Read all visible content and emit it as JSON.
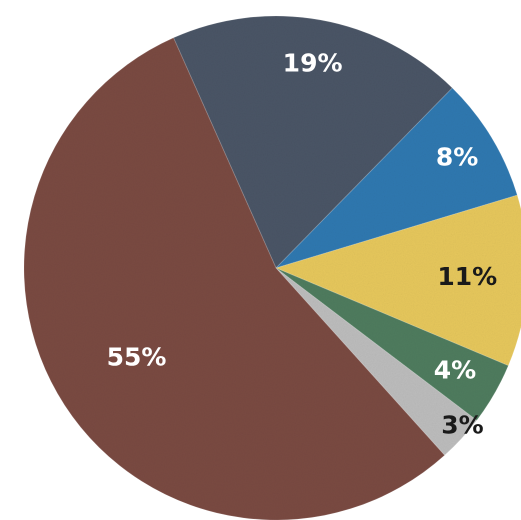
{
  "chart_data": {
    "type": "pie",
    "title": "",
    "unit": "%",
    "start_angle_deg": -114,
    "direction": "clockwise",
    "slices": [
      {
        "label": "19%",
        "value": 19,
        "color": "#4a5566",
        "label_color": "#ffffff"
      },
      {
        "label": "8%",
        "value": 8,
        "color": "#2f78b0",
        "label_color": "#ffffff"
      },
      {
        "label": "11%",
        "value": 11,
        "color": "#e6c75c",
        "label_color": "#1a1a1a"
      },
      {
        "label": "4%",
        "value": 4,
        "color": "#4f7c5e",
        "label_color": "#ffffff"
      },
      {
        "label": "3%",
        "value": 3,
        "color": "#bcbcbc",
        "label_color": "#1a1a1a"
      },
      {
        "label": "55%",
        "value": 55,
        "color": "#7a4a42",
        "label_color": "#ffffff"
      }
    ],
    "legend": "none",
    "grid": false
  }
}
